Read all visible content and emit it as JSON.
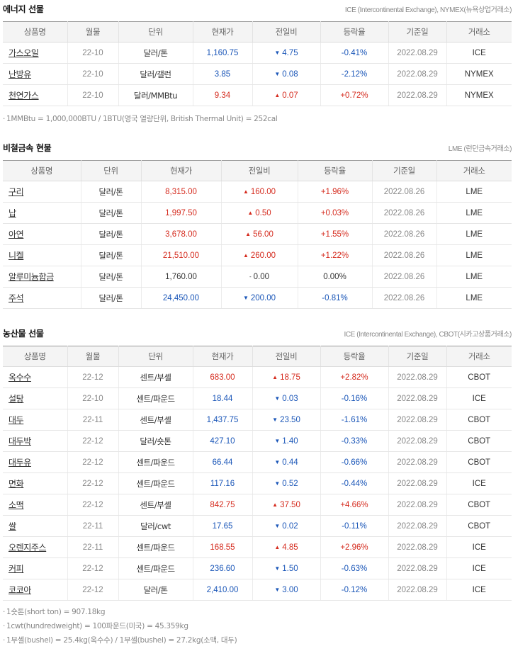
{
  "energy": {
    "title": "에너지 선물",
    "source": "ICE (Intercontinental Exchange), NYMEX(뉴욕상업거래소)",
    "headers": [
      "상품명",
      "월물",
      "단위",
      "현재가",
      "전일비",
      "등락율",
      "기준일",
      "거래소"
    ],
    "rows": [
      {
        "name": "가스오일",
        "month": "22-10",
        "unit": "달러/톤",
        "price": "1,160.75",
        "dir": "down",
        "change": "4.75",
        "rate": "-0.41%",
        "date": "2022.08.29",
        "exchange": "ICE"
      },
      {
        "name": "난방유",
        "month": "22-10",
        "unit": "달러/갤런",
        "price": "3.85",
        "dir": "down",
        "change": "0.08",
        "rate": "-2.12%",
        "date": "2022.08.29",
        "exchange": "NYMEX"
      },
      {
        "name": "천연가스",
        "month": "22-10",
        "unit": "달러/MMBtu",
        "price": "9.34",
        "dir": "up",
        "change": "0.07",
        "rate": "+0.72%",
        "date": "2022.08.29",
        "exchange": "NYMEX"
      }
    ],
    "notes": [
      "1MMBtu = 1,000,000BTU / 1BTU(영국 열량단위, British Thermal Unit) = 252cal"
    ]
  },
  "metals": {
    "title": "비철금속 현물",
    "source": "LME (런던금속거래소)",
    "headers": [
      "상품명",
      "단위",
      "현재가",
      "전일비",
      "등락율",
      "기준일",
      "거래소"
    ],
    "rows": [
      {
        "name": "구리",
        "unit": "달러/톤",
        "price": "8,315.00",
        "dir": "up",
        "change": "160.00",
        "rate": "+1.96%",
        "date": "2022.08.26",
        "exchange": "LME"
      },
      {
        "name": "납",
        "unit": "달러/톤",
        "price": "1,997.50",
        "dir": "up",
        "change": "0.50",
        "rate": "+0.03%",
        "date": "2022.08.26",
        "exchange": "LME"
      },
      {
        "name": "아연",
        "unit": "달러/톤",
        "price": "3,678.00",
        "dir": "up",
        "change": "56.00",
        "rate": "+1.55%",
        "date": "2022.08.26",
        "exchange": "LME"
      },
      {
        "name": "니켈",
        "unit": "달러/톤",
        "price": "21,510.00",
        "dir": "up",
        "change": "260.00",
        "rate": "+1.22%",
        "date": "2022.08.26",
        "exchange": "LME"
      },
      {
        "name": "알루미늄합금",
        "unit": "달러/톤",
        "price": "1,760.00",
        "dir": "flat",
        "change": "0.00",
        "rate": "0.00%",
        "date": "2022.08.26",
        "exchange": "LME"
      },
      {
        "name": "주석",
        "unit": "달러/톤",
        "price": "24,450.00",
        "dir": "down",
        "change": "200.00",
        "rate": "-0.81%",
        "date": "2022.08.26",
        "exchange": "LME"
      }
    ]
  },
  "agri": {
    "title": "농산물 선물",
    "source": "ICE (Intercontinental Exchange), CBOT(시카고상품거래소)",
    "headers": [
      "상품명",
      "월물",
      "단위",
      "현재가",
      "전일비",
      "등락율",
      "기준일",
      "거래소"
    ],
    "rows": [
      {
        "name": "옥수수",
        "month": "22-12",
        "unit": "센트/부셸",
        "price": "683.00",
        "dir": "up",
        "change": "18.75",
        "rate": "+2.82%",
        "date": "2022.08.29",
        "exchange": "CBOT"
      },
      {
        "name": "설탕",
        "month": "22-10",
        "unit": "센트/파운드",
        "price": "18.44",
        "dir": "down",
        "change": "0.03",
        "rate": "-0.16%",
        "date": "2022.08.29",
        "exchange": "ICE"
      },
      {
        "name": "대두",
        "month": "22-11",
        "unit": "센트/부셸",
        "price": "1,437.75",
        "dir": "down",
        "change": "23.50",
        "rate": "-1.61%",
        "date": "2022.08.29",
        "exchange": "CBOT"
      },
      {
        "name": "대두박",
        "month": "22-12",
        "unit": "달러/숏톤",
        "price": "427.10",
        "dir": "down",
        "change": "1.40",
        "rate": "-0.33%",
        "date": "2022.08.29",
        "exchange": "CBOT"
      },
      {
        "name": "대두유",
        "month": "22-12",
        "unit": "센트/파운드",
        "price": "66.44",
        "dir": "down",
        "change": "0.44",
        "rate": "-0.66%",
        "date": "2022.08.29",
        "exchange": "CBOT"
      },
      {
        "name": "면화",
        "month": "22-12",
        "unit": "센트/파운드",
        "price": "117.16",
        "dir": "down",
        "change": "0.52",
        "rate": "-0.44%",
        "date": "2022.08.29",
        "exchange": "ICE"
      },
      {
        "name": "소맥",
        "month": "22-12",
        "unit": "센트/부셸",
        "price": "842.75",
        "dir": "up",
        "change": "37.50",
        "rate": "+4.66%",
        "date": "2022.08.29",
        "exchange": "CBOT"
      },
      {
        "name": "쌀",
        "month": "22-11",
        "unit": "달러/cwt",
        "price": "17.65",
        "dir": "down",
        "change": "0.02",
        "rate": "-0.11%",
        "date": "2022.08.29",
        "exchange": "CBOT"
      },
      {
        "name": "오렌지주스",
        "month": "22-11",
        "unit": "센트/파운드",
        "price": "168.55",
        "dir": "up",
        "change": "4.85",
        "rate": "+2.96%",
        "date": "2022.08.29",
        "exchange": "ICE"
      },
      {
        "name": "커피",
        "month": "22-12",
        "unit": "센트/파운드",
        "price": "236.60",
        "dir": "down",
        "change": "1.50",
        "rate": "-0.63%",
        "date": "2022.08.29",
        "exchange": "ICE"
      },
      {
        "name": "코코아",
        "month": "22-12",
        "unit": "달러/톤",
        "price": "2,410.00",
        "dir": "down",
        "change": "3.00",
        "rate": "-0.12%",
        "date": "2022.08.29",
        "exchange": "ICE"
      }
    ],
    "notes": [
      "1숏톤(short ton) = 907.18kg",
      "1cwt(hundredweight) = 100파운드(미국) = 45.359kg",
      "1부셸(bushel) = 25.4kg(옥수수) / 1부셸(bushel) = 27.2kg(소맥, 대두)"
    ]
  },
  "symbols": {
    "up": "▲",
    "down": "▼",
    "flat": "-"
  },
  "colors": {
    "up": "#d52b1e",
    "down": "#1a56b8"
  }
}
